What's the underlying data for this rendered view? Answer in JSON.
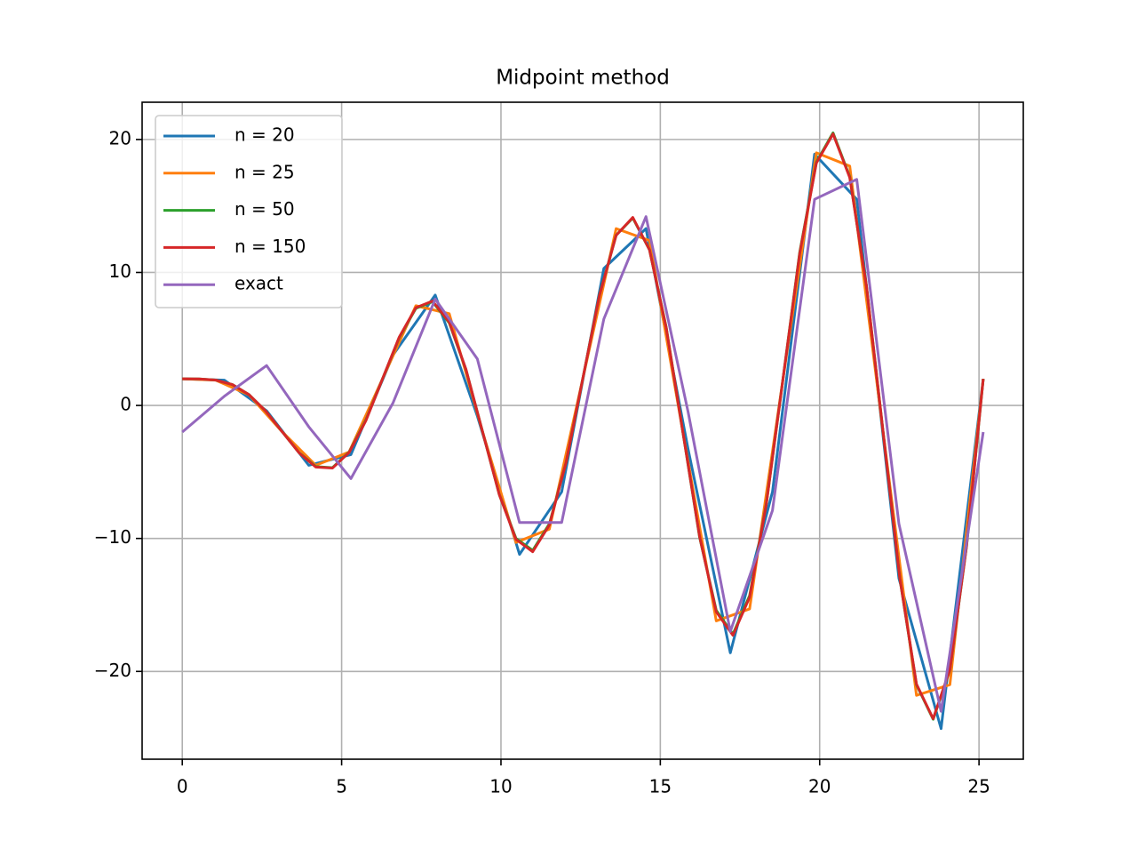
{
  "chart_data": {
    "type": "line",
    "title": "Midpoint method",
    "xlim": [
      -1.26,
      26.39
    ],
    "ylim": [
      -26.6,
      22.8
    ],
    "xticks": [
      0,
      5,
      10,
      15,
      20,
      25
    ],
    "yticks": [
      {
        "value": -20,
        "label": "−20"
      },
      {
        "value": -10,
        "label": "−10"
      },
      0,
      10,
      20
    ],
    "grid": true,
    "legend": "upper left",
    "series": [
      {
        "name": "n = 20",
        "color": "#1f77b4",
        "x": [
          0,
          1.323,
          2.646,
          3.968,
          5.291,
          6.614,
          7.937,
          9.259,
          10.582,
          11.905,
          13.228,
          14.55,
          15.873,
          17.196,
          18.519,
          19.841,
          21.164,
          22.487,
          23.81,
          25.133
        ],
        "values": [
          2,
          1.9,
          -0.4,
          -4.5,
          -3.7,
          3.8,
          8.3,
          -0.8,
          -11.2,
          -6.5,
          10.3,
          13.3,
          -3.3,
          -18.6,
          -6.5,
          18.9,
          15.5,
          -13,
          -24.3,
          2
        ]
      },
      {
        "name": "n = 25",
        "color": "#ff7f0e",
        "x": [
          0,
          1.047,
          2.094,
          3.142,
          4.189,
          5.236,
          6.283,
          7.33,
          8.378,
          9.425,
          10.472,
          11.519,
          12.566,
          13.614,
          14.661,
          15.708,
          16.755,
          17.802,
          18.85,
          19.897,
          20.944,
          21.991,
          23.038,
          24.086,
          25.133
        ],
        "values": [
          2,
          1.9,
          0.8,
          -2,
          -4.5,
          -3.5,
          2,
          7.5,
          6.9,
          -2,
          -10.3,
          -9.3,
          2,
          13.3,
          12.4,
          -2,
          -16.2,
          -15.3,
          2,
          19,
          18,
          -2,
          -21.8,
          -21,
          2
        ]
      },
      {
        "name": "n = 50",
        "color": "#2ca02c",
        "x": [
          0,
          0.524,
          1.047,
          1.571,
          2.094,
          2.618,
          3.142,
          3.665,
          4.189,
          4.712,
          5.236,
          5.76,
          6.283,
          6.807,
          7.33,
          7.854,
          8.378,
          8.901,
          9.425,
          9.948,
          10.472,
          10.996,
          11.519,
          12.043,
          12.566,
          13.09,
          13.614,
          14.137,
          14.661,
          15.184,
          15.708,
          16.232,
          16.755,
          17.279,
          17.802,
          18.326,
          18.85,
          19.373,
          19.897,
          20.42,
          20.944,
          21.468,
          21.991,
          22.515,
          23.038,
          23.562,
          24.086,
          24.609,
          25.133
        ],
        "values": [
          2,
          1.99,
          1.91,
          1.57,
          0.81,
          -0.42,
          -2,
          -3.55,
          -4.6,
          -4.68,
          -3.5,
          -1.1,
          2,
          5.1,
          7.3,
          7.8,
          6.2,
          2.7,
          -2,
          -6.7,
          -10,
          -10.9,
          -8.9,
          -4.3,
          2,
          8.3,
          12.8,
          14.1,
          11.7,
          5.9,
          -2,
          -9.9,
          -15.4,
          -17.2,
          -14.3,
          -7.4,
          2,
          11.5,
          18.3,
          20.5,
          17.2,
          9,
          -2,
          -13,
          -21,
          -23.6,
          -19.9,
          -10.6,
          2
        ]
      },
      {
        "name": "n = 150",
        "color": "#d62728",
        "x": [
          0,
          0.524,
          1.047,
          1.571,
          2.094,
          2.618,
          3.142,
          3.665,
          4.189,
          4.712,
          5.236,
          5.76,
          6.283,
          6.807,
          7.33,
          7.854,
          8.378,
          8.901,
          9.425,
          9.948,
          10.472,
          10.996,
          11.519,
          12.043,
          12.566,
          13.09,
          13.614,
          14.137,
          14.661,
          15.184,
          15.708,
          16.232,
          16.755,
          17.279,
          17.802,
          18.326,
          18.85,
          19.373,
          19.897,
          20.42,
          20.944,
          21.468,
          21.991,
          22.515,
          23.038,
          23.562,
          24.086,
          24.609,
          25.133
        ],
        "values": [
          2,
          1.99,
          1.91,
          1.57,
          0.81,
          -0.42,
          -2,
          -3.56,
          -4.63,
          -4.71,
          -3.53,
          -1.15,
          2,
          5.14,
          7.35,
          7.85,
          6.26,
          2.72,
          -2,
          -6.71,
          -10.07,
          -11,
          -8.98,
          -4.29,
          2,
          8.28,
          12.79,
          14.14,
          11.7,
          5.86,
          -2,
          -9.85,
          -15.51,
          -17.28,
          -14.42,
          -7.43,
          2,
          11.42,
          18.23,
          20.42,
          17.14,
          9,
          -2,
          -12.99,
          -20.95,
          -23.56,
          -19.86,
          -10.57,
          2
        ]
      },
      {
        "name": "exact",
        "color": "#9467bd",
        "x": [
          0,
          1.323,
          2.646,
          3.968,
          5.291,
          6.614,
          7.937,
          9.259,
          10.582,
          11.905,
          13.228,
          14.55,
          15.873,
          17.196,
          18.519,
          19.841,
          21.164,
          22.487,
          23.81,
          25.133
        ],
        "values": [
          -2,
          0.7,
          3,
          -1.6,
          -5.5,
          0.2,
          8,
          3.5,
          -8.8,
          -8.8,
          6.5,
          14.2,
          -0.5,
          -17,
          -7.9,
          15.5,
          17,
          -8.9,
          -23,
          -2
        ]
      }
    ]
  }
}
